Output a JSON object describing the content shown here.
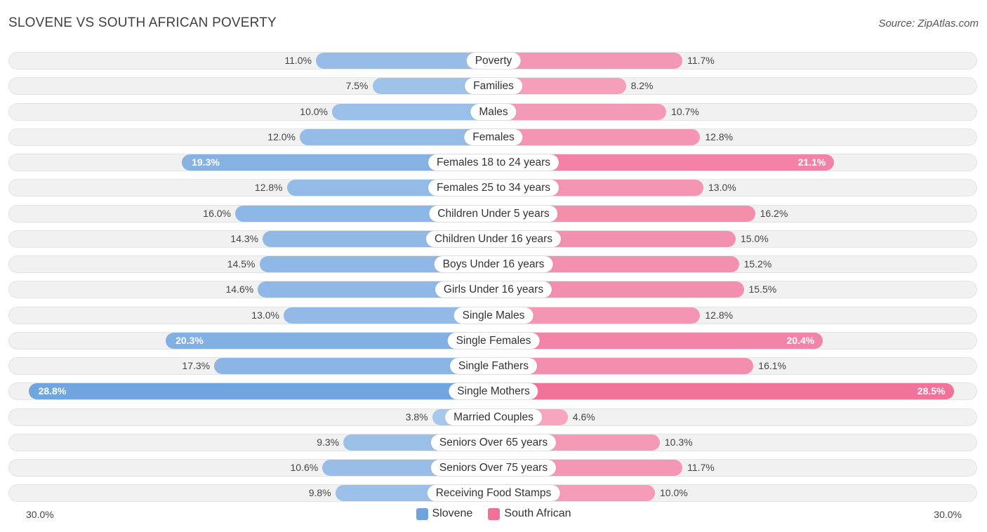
{
  "header": {
    "title": "SLOVENE VS SOUTH AFRICAN POVERTY",
    "source": "Source: ZipAtlas.com"
  },
  "chart_data": {
    "type": "bar",
    "orientation": "horizontal-diverging",
    "title": "SLOVENE VS SOUTH AFRICAN POVERTY",
    "xlim": [
      0,
      30
    ],
    "axis_labels": {
      "left": "30.0%",
      "right": "30.0%"
    },
    "categories": [
      "Poverty",
      "Families",
      "Males",
      "Females",
      "Females 18 to 24 years",
      "Females 25 to 34 years",
      "Children Under 5 years",
      "Children Under 16 years",
      "Boys Under 16 years",
      "Girls Under 16 years",
      "Single Males",
      "Single Females",
      "Single Fathers",
      "Single Mothers",
      "Married Couples",
      "Seniors Over 65 years",
      "Seniors Over 75 years",
      "Receiving Food Stamps"
    ],
    "series": [
      {
        "name": "Slovene",
        "color": "#6ea3de",
        "values": [
          11.0,
          7.5,
          10.0,
          12.0,
          19.3,
          12.8,
          16.0,
          14.3,
          14.5,
          14.6,
          13.0,
          20.3,
          17.3,
          28.8,
          3.8,
          9.3,
          10.6,
          9.8
        ],
        "labels": [
          "11.0%",
          "7.5%",
          "10.0%",
          "12.0%",
          "19.3%",
          "12.8%",
          "16.0%",
          "14.3%",
          "14.5%",
          "14.6%",
          "13.0%",
          "20.3%",
          "17.3%",
          "28.8%",
          "3.8%",
          "9.3%",
          "10.6%",
          "9.8%"
        ]
      },
      {
        "name": "South African",
        "color": "#f07098",
        "values": [
          11.7,
          8.2,
          10.7,
          12.8,
          21.1,
          13.0,
          16.2,
          15.0,
          15.2,
          15.5,
          12.8,
          20.4,
          16.1,
          28.5,
          4.6,
          10.3,
          11.7,
          10.0
        ],
        "labels": [
          "11.7%",
          "8.2%",
          "10.7%",
          "12.8%",
          "21.1%",
          "13.0%",
          "16.2%",
          "15.0%",
          "15.2%",
          "15.5%",
          "12.8%",
          "20.4%",
          "16.1%",
          "28.5%",
          "4.6%",
          "10.3%",
          "11.7%",
          "10.0%"
        ]
      }
    ],
    "legend": [
      {
        "name": "Slovene",
        "color": "#6ea3de"
      },
      {
        "name": "South African",
        "color": "#f07098"
      }
    ],
    "legend_position": "bottom-center"
  }
}
